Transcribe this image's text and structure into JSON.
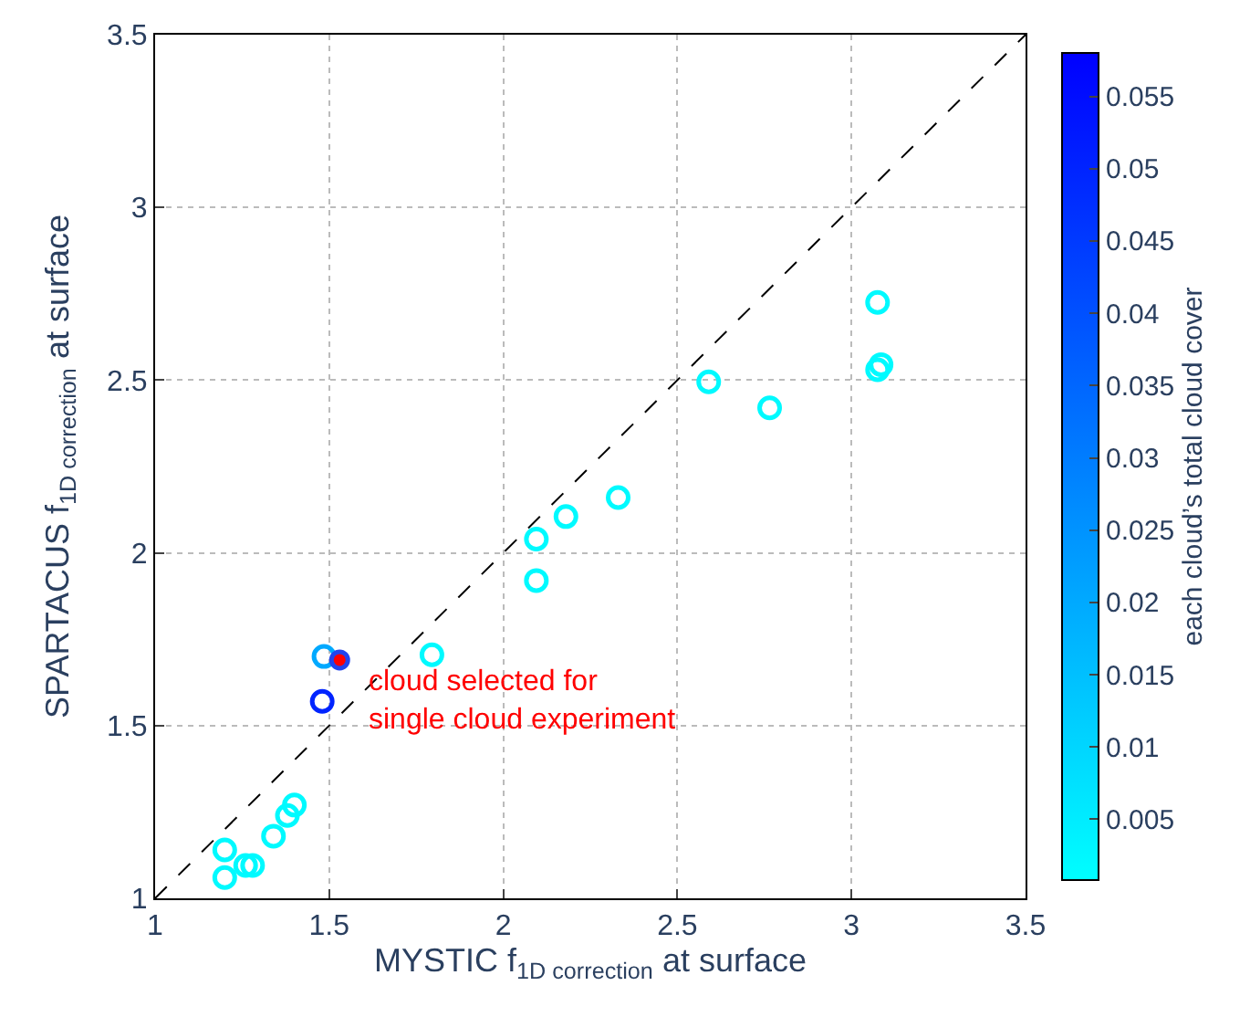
{
  "chart_data": {
    "type": "scatter",
    "xlabel": "MYSTIC f$_{1D correction}$ at surface",
    "ylabel": "SPARTACUS f$_{1D correction}$ at surface",
    "clabel": "each cloud’s total cloud cover",
    "xlim": [
      1,
      3.5
    ],
    "ylim": [
      1,
      3.5
    ],
    "xticks": [
      1,
      1.5,
      2,
      2.5,
      3,
      3.5
    ],
    "yticks": [
      1,
      1.5,
      2,
      2.5,
      3,
      3.5
    ],
    "clim": [
      0.0008,
      0.058
    ],
    "cticks": [
      0.005,
      0.01,
      0.015,
      0.02,
      0.025,
      0.03,
      0.035,
      0.04,
      0.045,
      0.05,
      0.055
    ],
    "grid": true,
    "marker": "circle",
    "series": [
      {
        "type": "line",
        "marker": "none",
        "line_style": "dashed",
        "color": "#000000",
        "x": [
          1,
          3.5
        ],
        "values": [
          1,
          3.5
        ]
      },
      {
        "x": [
          1.2,
          1.2,
          1.26,
          1.28,
          1.34,
          1.38,
          1.4,
          1.48,
          1.485,
          1.795,
          2.095,
          2.095,
          2.18,
          2.33,
          2.59,
          2.765,
          3.075,
          3.075,
          3.085
        ],
        "values": [
          1.14,
          1.06,
          1.095,
          1.095,
          1.18,
          1.24,
          1.27,
          1.57,
          1.7,
          1.705,
          2.04,
          1.92,
          2.105,
          2.16,
          2.495,
          2.42,
          2.725,
          2.53,
          2.545
        ],
        "colors": [
          "#00faff",
          "#00faff",
          "#00faff",
          "#00faff",
          "#00faff",
          "#00faff",
          "#00faff",
          "#0024ff",
          "#00a9ff",
          "#00faff",
          "#00faff",
          "#00faff",
          "#00faff",
          "#00faff",
          "#00faff",
          "#00faff",
          "#00faff",
          "#00faff",
          "#00faff"
        ]
      },
      {
        "color": "#ff0000",
        "x": [
          1.53
        ],
        "values": [
          1.69
        ]
      }
    ],
    "annotations": [
      {
        "text": "cloud selected for\nsingle cloud experiment",
        "x": 1.53,
        "y": 1.69
      }
    ]
  }
}
